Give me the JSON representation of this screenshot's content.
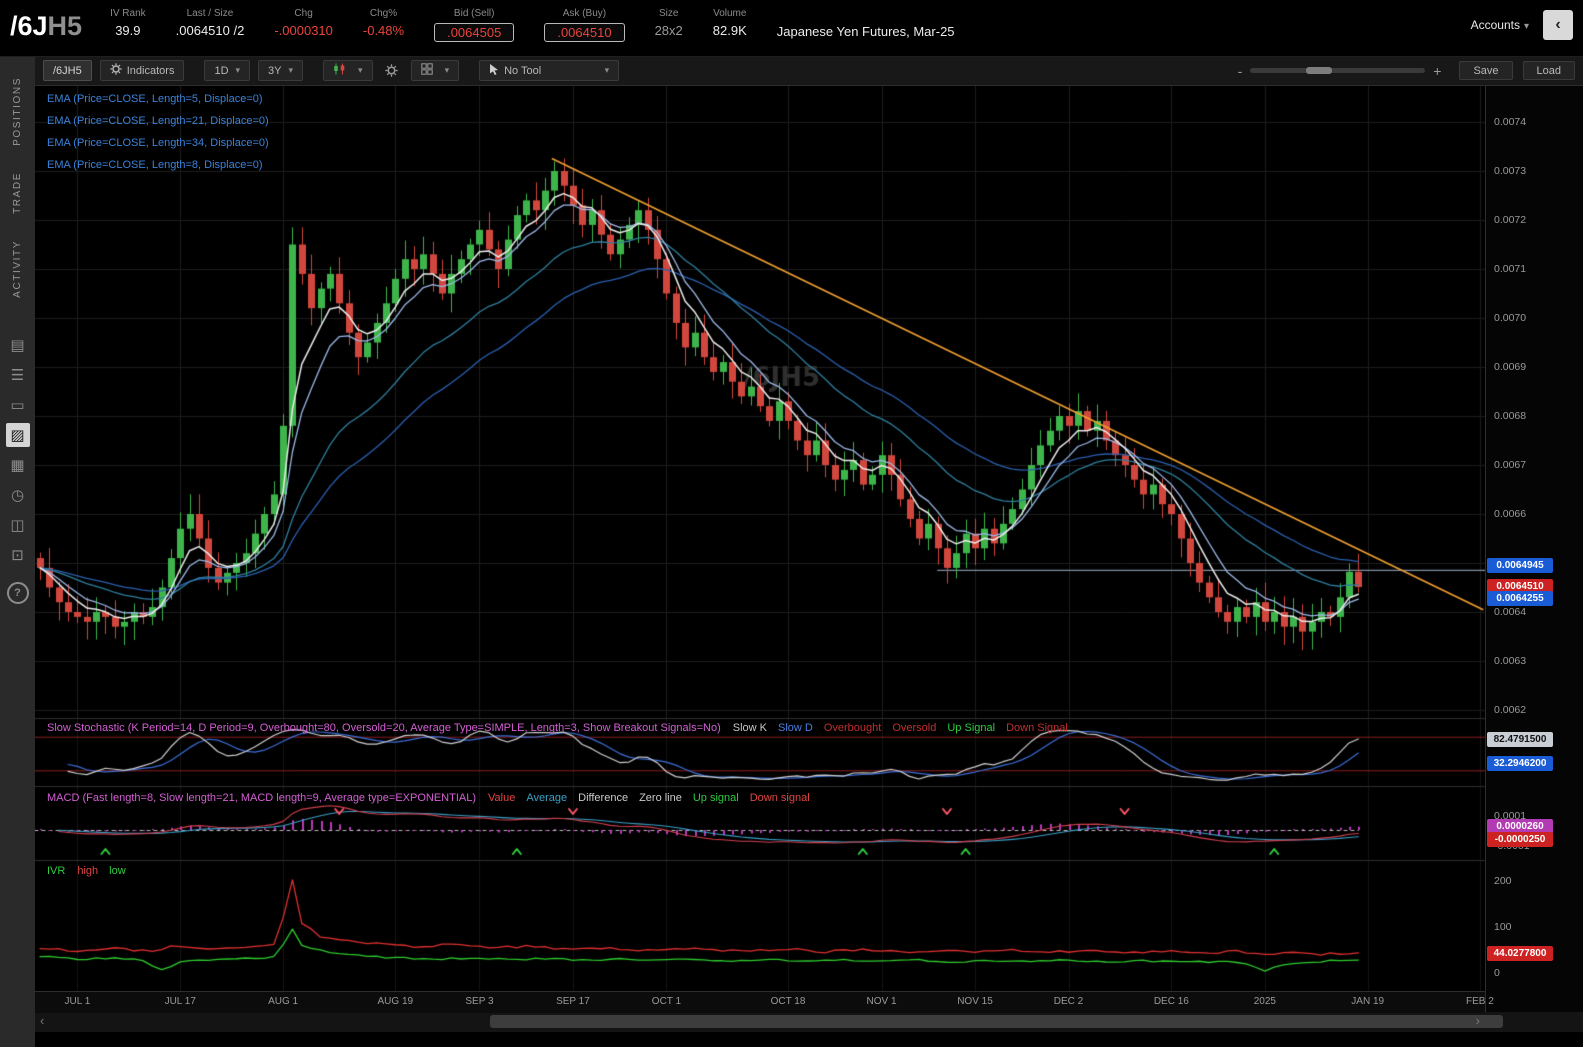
{
  "header": {
    "symbol": "/6J",
    "symbol_suffix": "H5",
    "fields": [
      {
        "label": "IV Rank",
        "value": "39.9",
        "style": "white"
      },
      {
        "label": "Last / Size",
        "value": ".0064510 /2",
        "style": "white"
      },
      {
        "label": "Chg",
        "value": "-.0000310",
        "style": "red"
      },
      {
        "label": "Chg%",
        "value": "-0.48%",
        "style": "red"
      },
      {
        "label": "Bid (Sell)",
        "value": ".0064505",
        "style": "red-boxed"
      },
      {
        "label": "Ask (Buy)",
        "value": ".0064510",
        "style": "red-boxed"
      },
      {
        "label": "Size",
        "value": "28x2",
        "style": "muted"
      },
      {
        "label": "Volume",
        "value": "82.9K",
        "style": "white"
      }
    ],
    "description": "Japanese Yen Futures, Mar-25",
    "accounts_label": "Accounts",
    "collapse_glyph": "‹"
  },
  "sidebar": {
    "tabs": [
      {
        "id": "positions",
        "label": "POSITIONS"
      },
      {
        "id": "trade",
        "label": "TRADE"
      },
      {
        "id": "activity",
        "label": "ACTIVITY"
      }
    ],
    "icons": [
      {
        "name": "quote-board-icon",
        "glyph": "▤",
        "active": false
      },
      {
        "name": "watchlist-icon",
        "glyph": "☰",
        "active": false
      },
      {
        "name": "calendar-icon",
        "glyph": "▭",
        "active": false
      },
      {
        "name": "chart-icon",
        "glyph": "▨",
        "active": true
      },
      {
        "name": "grid-layout-icon",
        "glyph": "▦",
        "active": false
      },
      {
        "name": "history-clock-icon",
        "glyph": "◷",
        "active": false
      },
      {
        "name": "community-icon",
        "glyph": "◫",
        "active": false
      },
      {
        "name": "snapshot-icon",
        "glyph": "⊡",
        "active": false
      }
    ],
    "help_label": "?"
  },
  "toolbar": {
    "symbol": "/6JH5",
    "indicators_label": "Indicators",
    "timeframe": "1D",
    "range": "3Y",
    "tool_label": "No Tool",
    "zoom_minus": "-",
    "zoom_plus": "+",
    "save_label": "Save",
    "load_label": "Load"
  },
  "chart": {
    "watermark": "/6JH5"
  },
  "studies": {
    "ema_labels": [
      "EMA (Price=CLOSE, Length=5, Displace=0)",
      "EMA (Price=CLOSE, Length=21, Displace=0)",
      "EMA (Price=CLOSE, Length=34, Displace=0)",
      "EMA (Price=CLOSE, Length=8, Displace=0)"
    ],
    "stoch": {
      "label": "Slow Stochastic (K Period=14, D Period=9, Overbought=80, Oversold=20, Average Type=SIMPLE, Length=3, Show Breakout Signals=No)",
      "label_color": "#d45fd4",
      "legend": [
        {
          "text": "Slow K",
          "color": "#c8c8c8"
        },
        {
          "text": "Slow D",
          "color": "#4a7fe0"
        },
        {
          "text": "Overbought",
          "color": "#c03030"
        },
        {
          "text": "Oversold",
          "color": "#c03030"
        },
        {
          "text": "Up Signal",
          "color": "#2ecc40"
        },
        {
          "text": "Down Signal",
          "color": "#c03030"
        }
      ],
      "values": [
        {
          "text": "82.4791500",
          "bg": "#c9ced5",
          "fg": "#111111"
        },
        {
          "text": "32.2946200",
          "bg": "#1a5bd6",
          "fg": "#ffffff"
        }
      ]
    },
    "macd": {
      "label": "MACD (Fast length=8, Slow length=21, MACD length=9, Average type=EXPONENTIAL)",
      "label_color": "#d45fd4",
      "legend": [
        {
          "text": "Value",
          "color": "#e04545"
        },
        {
          "text": "Average",
          "color": "#3aa0c8"
        },
        {
          "text": "Difference",
          "color": "#cccccc"
        },
        {
          "text": "Zero line",
          "color": "#cccccc"
        },
        {
          "text": "Up signal",
          "color": "#2ecc40"
        },
        {
          "text": "Down signal",
          "color": "#e04545"
        }
      ],
      "axis_top": "0.0001",
      "axis_bottom": "-0.0001",
      "values": [
        {
          "text": "0.0000260",
          "bg": "#b23ab2",
          "fg": "#ffffff"
        },
        {
          "text": "-0.0000250",
          "bg": "#cc2222",
          "fg": "#ffffff"
        }
      ]
    },
    "ivr": {
      "label": "IVR",
      "label_color": "#2ecc40",
      "legend": [
        {
          "text": "high",
          "color": "#e04545"
        },
        {
          "text": "low",
          "color": "#2ecc40"
        }
      ],
      "axis": [
        "200",
        "100",
        "0"
      ],
      "value": {
        "text": "44.0277800",
        "bg": "#cc2222",
        "fg": "#ffffff"
      }
    }
  },
  "price_axis": {
    "labels": [
      {
        "text": "0.0074",
        "p": 74.0
      },
      {
        "text": "0.0073",
        "p": 73.0
      },
      {
        "text": "0.0072",
        "p": 72.0
      },
      {
        "text": "0.0071",
        "p": 71.0
      },
      {
        "text": "0.0070",
        "p": 70.0
      },
      {
        "text": "0.0069",
        "p": 69.0
      },
      {
        "text": "0.0068",
        "p": 68.0
      },
      {
        "text": "0.0067",
        "p": 67.0
      },
      {
        "text": "0.0066",
        "p": 66.0
      },
      {
        "text": "0.0064",
        "p": 64.0
      },
      {
        "text": "0.0063",
        "p": 63.0
      },
      {
        "text": "0.0062",
        "p": 62.0
      }
    ],
    "tags": [
      {
        "text": "0.0064945",
        "p": 64.945,
        "bg": "#1a5bd6",
        "fg": "#ffffff"
      },
      {
        "text": "0.0064510",
        "p": 64.51,
        "bg": "#cc2222",
        "fg": "#ffffff"
      },
      {
        "text": "0.0064255",
        "p": 64.255,
        "bg": "#1a5bd6",
        "fg": "#ffffff"
      }
    ]
  },
  "time_axis": [
    {
      "label": "JUL 1",
      "day": 4
    },
    {
      "label": "JUL 17",
      "day": 15
    },
    {
      "label": "AUG 1",
      "day": 26
    },
    {
      "label": "AUG 19",
      "day": 38
    },
    {
      "label": "SEP 3",
      "day": 47
    },
    {
      "label": "SEP 17",
      "day": 57
    },
    {
      "label": "OCT 1",
      "day": 67
    },
    {
      "label": "OCT 18",
      "day": 80
    },
    {
      "label": "NOV 1",
      "day": 90
    },
    {
      "label": "NOV 15",
      "day": 100
    },
    {
      "label": "DEC 2",
      "day": 110
    },
    {
      "label": "DEC 16",
      "day": 121
    },
    {
      "label": "2025",
      "day": 131
    },
    {
      "label": "JAN 19",
      "day": 142
    },
    {
      "label": "FEB 2",
      "day": 154
    }
  ],
  "chart_data": {
    "type": "candlestick",
    "title": "Japanese Yen Futures Mar-25, daily, with EMA(5,8,21,34), Slow Stochastic, MACD, IVR",
    "price_unit": "price = value * 1e-4",
    "ylim": [
      61.8,
      74.7
    ],
    "closes": [
      64.9,
      64.5,
      64.2,
      64.0,
      63.9,
      63.8,
      64.0,
      63.9,
      63.7,
      63.8,
      64.0,
      63.9,
      64.1,
      64.5,
      65.1,
      65.7,
      66.0,
      65.5,
      64.9,
      64.6,
      64.8,
      65.0,
      65.2,
      65.6,
      66.0,
      66.4,
      67.8,
      71.5,
      70.9,
      70.2,
      70.6,
      70.9,
      70.3,
      69.7,
      69.2,
      69.5,
      69.9,
      70.3,
      70.8,
      71.2,
      71.0,
      71.3,
      70.9,
      70.5,
      70.9,
      71.2,
      71.5,
      71.8,
      71.4,
      71.0,
      71.6,
      72.1,
      72.4,
      72.2,
      72.6,
      73.0,
      72.7,
      72.3,
      71.9,
      72.2,
      71.7,
      71.3,
      71.6,
      71.9,
      72.2,
      71.8,
      71.2,
      70.5,
      69.9,
      69.4,
      69.7,
      69.2,
      68.9,
      69.1,
      68.7,
      68.4,
      68.6,
      68.2,
      67.9,
      68.3,
      67.9,
      67.5,
      67.2,
      67.5,
      67.0,
      66.7,
      66.9,
      67.1,
      66.6,
      66.8,
      67.2,
      66.8,
      66.3,
      65.9,
      65.5,
      65.8,
      65.3,
      64.9,
      65.2,
      65.6,
      65.3,
      65.7,
      65.4,
      65.8,
      66.1,
      66.5,
      67.0,
      67.4,
      67.7,
      68.0,
      67.8,
      68.1,
      67.7,
      67.9,
      67.5,
      67.2,
      67.0,
      66.7,
      66.4,
      66.6,
      66.2,
      66.0,
      65.5,
      65.0,
      64.6,
      64.3,
      64.0,
      63.8,
      64.1,
      63.9,
      64.2,
      63.8,
      64.0,
      63.7,
      63.9,
      63.6,
      63.8,
      64.0,
      63.9,
      64.3,
      64.82,
      64.51
    ],
    "colors": {
      "candle_up": "#3db54b",
      "candle_down": "#d2473d",
      "ema5": "#ececec",
      "ema8": "#9db8e8",
      "ema21": "#2e7f9e",
      "ema34": "#2a5fb0",
      "trendline": "#f0a030",
      "hline": "#7f8fa0",
      "stoch_k": "#cfcfcf",
      "stoch_d": "#3a6fd8",
      "stoch_bands": "#8b1f1f",
      "macd_value": "#d24050",
      "macd_avg": "#3aa0c8",
      "macd_hist": "#b93ab9",
      "up_signal": "#2ecc40",
      "down_signal": "#ff5566",
      "ivr_high": "#e03030",
      "ivr_low": "#2ecc2e"
    },
    "overlays": {
      "emas": [
        34,
        21,
        8,
        5
      ],
      "trendline": {
        "d1": 54.8,
        "p1": 73.25,
        "d2": 154.3,
        "p2": 64.05
      },
      "hline": {
        "p": 64.85,
        "from_day": 96
      }
    },
    "macd_signals": {
      "up_days": [
        7,
        51,
        88,
        99,
        132
      ],
      "down_days": [
        32,
        57,
        97,
        116
      ]
    },
    "stoch_bands": {
      "overbought": 80,
      "oversold": 20
    },
    "ivr_axis_max": 200,
    "ivr_red": [
      [
        0,
        55
      ],
      [
        4,
        48
      ],
      [
        8,
        53
      ],
      [
        12,
        47
      ],
      [
        14,
        58
      ],
      [
        18,
        50
      ],
      [
        22,
        54
      ],
      [
        25,
        60
      ],
      [
        26,
        120
      ],
      [
        27,
        205
      ],
      [
        28,
        110
      ],
      [
        30,
        80
      ],
      [
        33,
        70
      ],
      [
        36,
        64
      ],
      [
        40,
        58
      ],
      [
        44,
        62
      ],
      [
        48,
        55
      ],
      [
        52,
        58
      ],
      [
        56,
        52
      ],
      [
        60,
        55
      ],
      [
        64,
        48
      ],
      [
        68,
        54
      ],
      [
        72,
        50
      ],
      [
        76,
        47
      ],
      [
        80,
        52
      ],
      [
        84,
        46
      ],
      [
        88,
        51
      ],
      [
        92,
        45
      ],
      [
        96,
        50
      ],
      [
        100,
        46
      ],
      [
        104,
        51
      ],
      [
        108,
        45
      ],
      [
        112,
        49
      ],
      [
        116,
        44
      ],
      [
        120,
        48
      ],
      [
        124,
        42
      ],
      [
        128,
        47
      ],
      [
        131,
        41
      ],
      [
        134,
        45
      ],
      [
        137,
        40
      ],
      [
        139,
        43
      ],
      [
        141,
        44
      ]
    ],
    "ivr_green": [
      [
        0,
        36
      ],
      [
        4,
        30
      ],
      [
        8,
        33
      ],
      [
        11,
        27
      ],
      [
        13,
        6
      ],
      [
        15,
        24
      ],
      [
        18,
        29
      ],
      [
        22,
        31
      ],
      [
        25,
        35
      ],
      [
        26,
        60
      ],
      [
        27,
        95
      ],
      [
        28,
        60
      ],
      [
        31,
        45
      ],
      [
        34,
        38
      ],
      [
        38,
        33
      ],
      [
        42,
        30
      ],
      [
        46,
        33
      ],
      [
        50,
        29
      ],
      [
        54,
        32
      ],
      [
        58,
        28
      ],
      [
        62,
        31
      ],
      [
        66,
        27
      ],
      [
        70,
        30
      ],
      [
        74,
        27
      ],
      [
        78,
        29
      ],
      [
        82,
        26
      ],
      [
        86,
        29
      ],
      [
        90,
        25
      ],
      [
        94,
        28
      ],
      [
        98,
        24
      ],
      [
        102,
        27
      ],
      [
        106,
        25
      ],
      [
        110,
        28
      ],
      [
        114,
        24
      ],
      [
        118,
        26
      ],
      [
        122,
        23
      ],
      [
        126,
        25
      ],
      [
        129,
        21
      ],
      [
        131,
        4
      ],
      [
        133,
        18
      ],
      [
        136,
        24
      ],
      [
        139,
        27
      ],
      [
        141,
        29
      ]
    ]
  }
}
